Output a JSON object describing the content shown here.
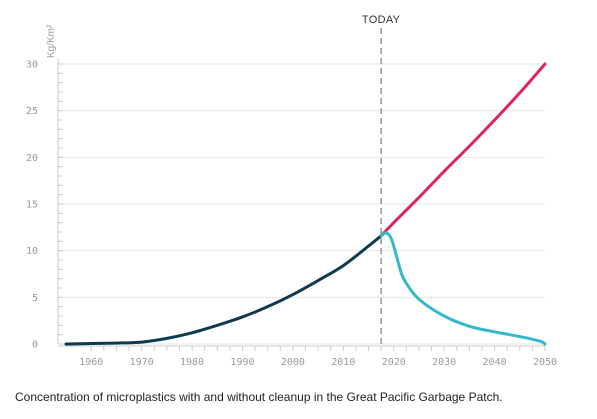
{
  "chart_data": {
    "type": "line",
    "title": "",
    "xlabel": "",
    "ylabel": "Kg/Km²",
    "xlim": [
      1955,
      2050
    ],
    "ylim": [
      0,
      30
    ],
    "x_ticks": [
      1960,
      1970,
      1980,
      1990,
      2000,
      2010,
      2020,
      2030,
      2040,
      2050
    ],
    "y_ticks": [
      0,
      5,
      10,
      15,
      20,
      25,
      30
    ],
    "grid": true,
    "today": {
      "label": "TODAY",
      "x": 2017.5
    },
    "series": [
      {
        "color": "#0e3a4f",
        "x": [
          1955,
          1960,
          1965,
          1970,
          1975,
          1980,
          1985,
          1990,
          1995,
          2000,
          2005,
          2010,
          2015,
          2017.5
        ],
        "y": [
          0,
          0.05,
          0.1,
          0.2,
          0.6,
          1.2,
          2.0,
          2.9,
          4.0,
          5.3,
          6.8,
          8.4,
          10.5,
          11.6
        ]
      },
      {
        "color": "#e0245e",
        "x": [
          2017.5,
          2020,
          2025,
          2030,
          2035,
          2040,
          2045,
          2050
        ],
        "y": [
          11.6,
          13.0,
          15.7,
          18.5,
          21.2,
          24.0,
          26.9,
          30.0
        ]
      },
      {
        "color": "#35b8c9",
        "x": [
          2017.5,
          2018.5,
          2019.5,
          2020.5,
          2021.5,
          2022.5,
          2025,
          2030,
          2035,
          2040,
          2045,
          2049,
          2050
        ],
        "y": [
          11.6,
          11.9,
          11.3,
          9.5,
          7.6,
          6.5,
          4.8,
          3.0,
          1.9,
          1.3,
          0.8,
          0.3,
          0.0
        ]
      }
    ]
  },
  "caption": "Concentration of microplastics with and without cleanup in the Great Pacific Garbage Patch."
}
